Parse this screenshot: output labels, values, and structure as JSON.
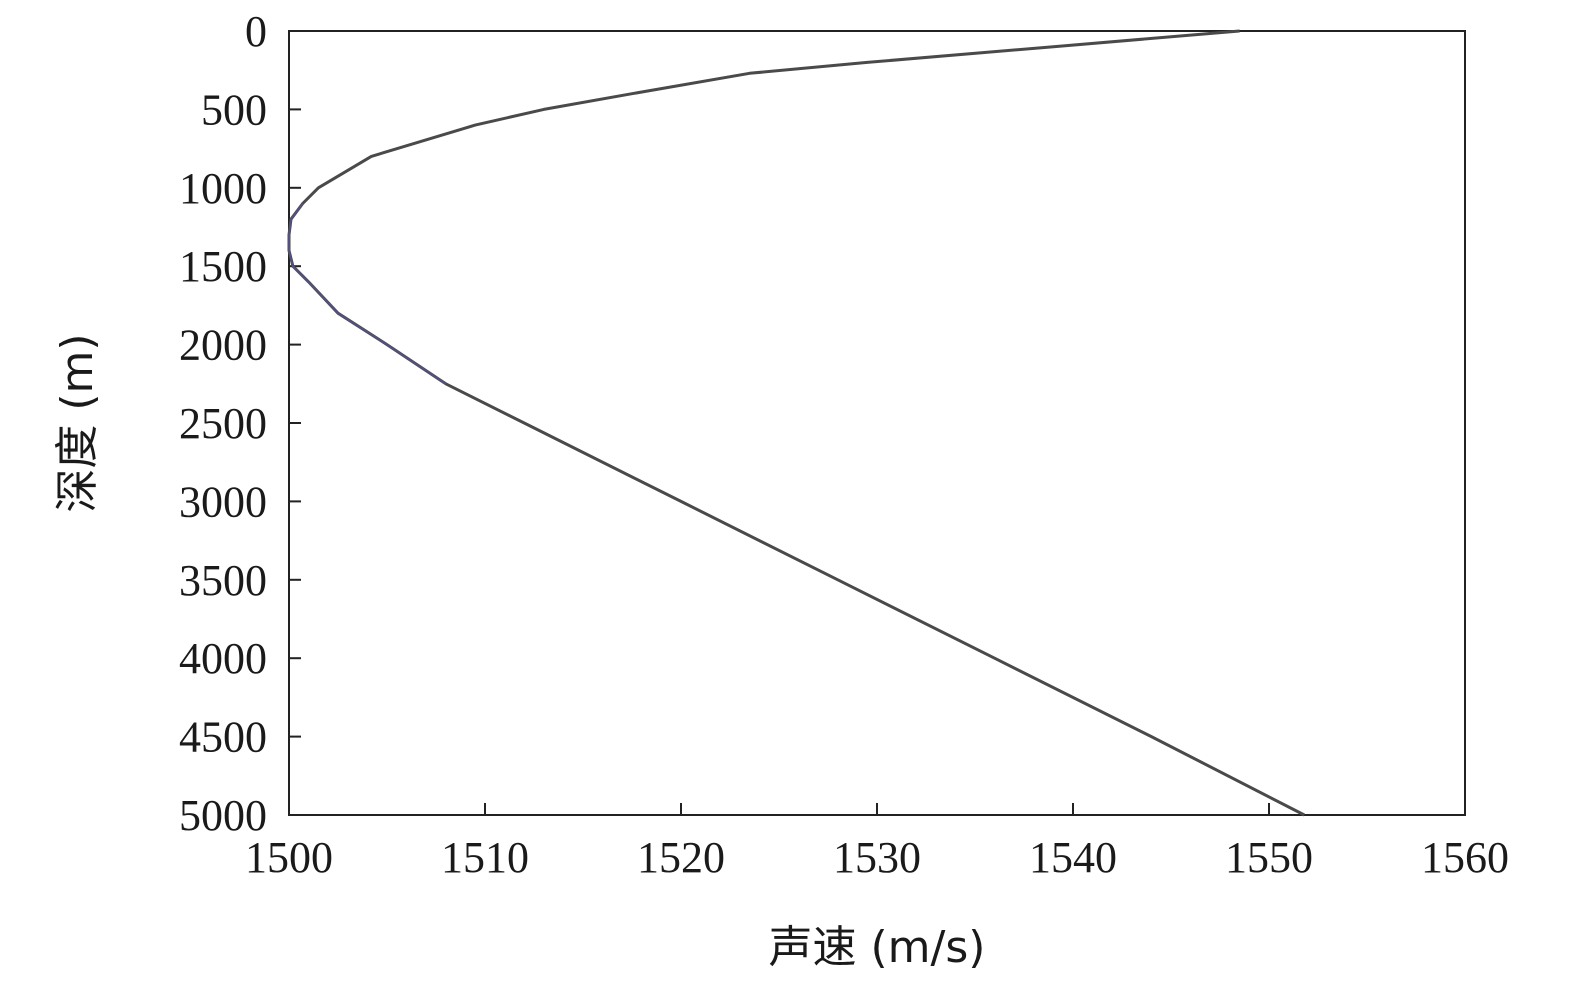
{
  "chart_data": {
    "type": "line",
    "xlabel": "声速 (m/s)",
    "ylabel": "深度 (m)",
    "xlim": [
      1500,
      1560
    ],
    "ylim": [
      0,
      5000
    ],
    "y_inverted": true,
    "x_ticks": [
      "1500",
      "1510",
      "1520",
      "1530",
      "1540",
      "1550",
      "1560"
    ],
    "y_ticks": [
      "0",
      "500",
      "1000",
      "1500",
      "2000",
      "2500",
      "3000",
      "3500",
      "4000",
      "4500",
      "5000"
    ],
    "grid": false,
    "series": [
      {
        "color": "#4a4a4a",
        "x": [
          1548.5,
          1539,
          1529.5,
          1523.5,
          1517.5,
          1513,
          1509.5,
          1504.2,
          1501.5,
          1500.7,
          1500.1,
          1500.0,
          1500.0,
          1500.2,
          1501.0,
          1502.5,
          1505.0,
          1508.0,
          1512.0,
          1520.0,
          1528.0,
          1536.0,
          1544.0,
          1551.8
        ],
        "y": [
          0,
          100,
          200,
          270,
          400,
          500,
          600,
          800,
          1000,
          1100,
          1200,
          1300,
          1400,
          1500,
          1600,
          1800,
          2000,
          2250,
          2500,
          3000,
          3500,
          4000,
          4500,
          5000
        ]
      }
    ],
    "highlight_color": "#5a55a8"
  }
}
